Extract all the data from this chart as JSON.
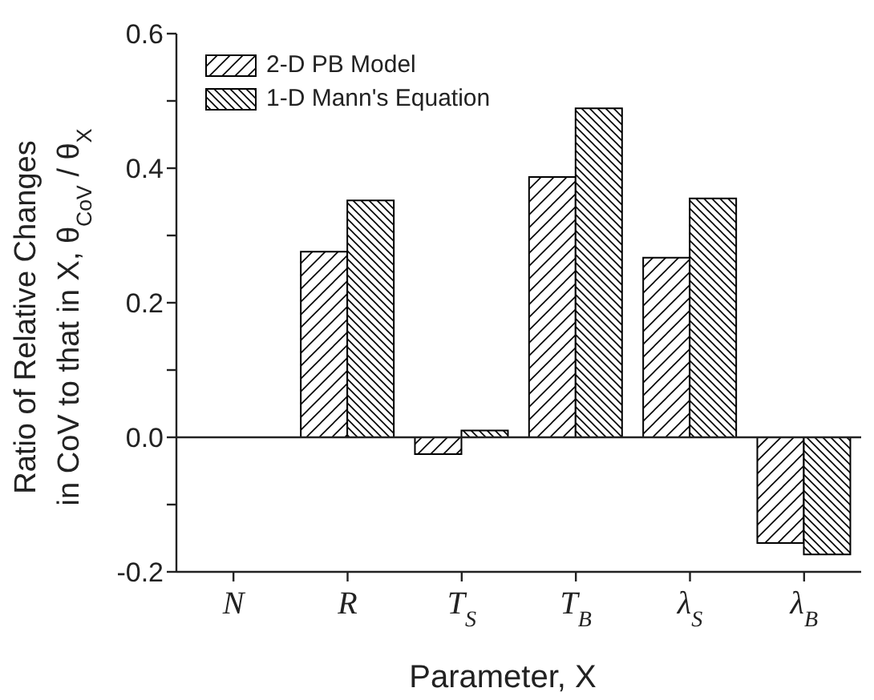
{
  "chart_data": {
    "type": "bar",
    "xlabel": "Parameter, X",
    "ylabel": "Ratio of Relative Changes\nin CoV to that in X, θ$_{CoV}$ / θ$_{X}$",
    "categories": [
      "N",
      "R",
      "T$_{S}$",
      "T$_{B}$",
      "λ$_{S}$",
      "λ$_{B}$"
    ],
    "series": [
      {
        "name": "2-D PB Model",
        "color": "#000000",
        "values": [
          0.0,
          0.276,
          -0.025,
          0.387,
          0.267,
          -0.157
        ]
      },
      {
        "name": "1-D Mann's Equation",
        "color": "#000000",
        "values": [
          0.0,
          0.352,
          0.01,
          0.489,
          0.355,
          -0.174
        ]
      }
    ],
    "ylim": [
      -0.2,
      0.6
    ],
    "yticks": [
      {
        "value": -0.2,
        "label": "-0.2"
      },
      {
        "value": -0.1,
        "label": null
      },
      {
        "value": 0,
        "label": "0.0"
      },
      {
        "value": 0.1,
        "label": null
      },
      {
        "value": 0.2,
        "label": "0.2"
      },
      {
        "value": 0.3,
        "label": null
      },
      {
        "value": 0.4,
        "label": "0.4"
      },
      {
        "value": 0.5,
        "label": null
      },
      {
        "value": 0.6,
        "label": "0.6"
      }
    ],
    "ref_lines": [
      {
        "axis": "y",
        "value": 0
      }
    ],
    "grid": false,
    "legend": "top left"
  }
}
